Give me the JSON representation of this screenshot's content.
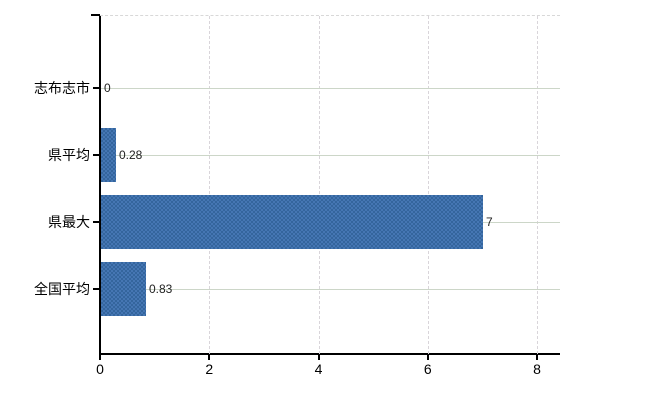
{
  "chart_data": {
    "type": "bar",
    "orientation": "horizontal",
    "title": "",
    "categories": [
      "志布志市",
      "県平均",
      "県最大",
      "全国平均"
    ],
    "values": [
      0,
      0.28,
      7,
      0.83
    ],
    "value_labels": [
      "0",
      "0.28",
      "7",
      "0.83"
    ],
    "x_ticks": [
      0,
      2,
      4,
      6,
      8
    ],
    "x_tick_labels": [
      "0",
      "2",
      "4",
      "6",
      "8"
    ],
    "xlim": [
      0,
      8.4
    ],
    "xlabel": "",
    "ylabel": "",
    "legend": "none",
    "grid": {
      "horizontal": "solid, one line per category",
      "vertical": "dashed, at ticks 2 4 6 8",
      "top_border": "dashed"
    },
    "colors": {
      "bar": "#3d6ea8",
      "bar_dither_light": "#4576b3",
      "bar_dither_dark": "#34659d",
      "grid_horizontal": "#ccd6c8",
      "grid_vertical": "#d9d5da",
      "axis": "#000000",
      "text": "#000000",
      "value_text": "#222222",
      "background": "#ffffff"
    }
  }
}
